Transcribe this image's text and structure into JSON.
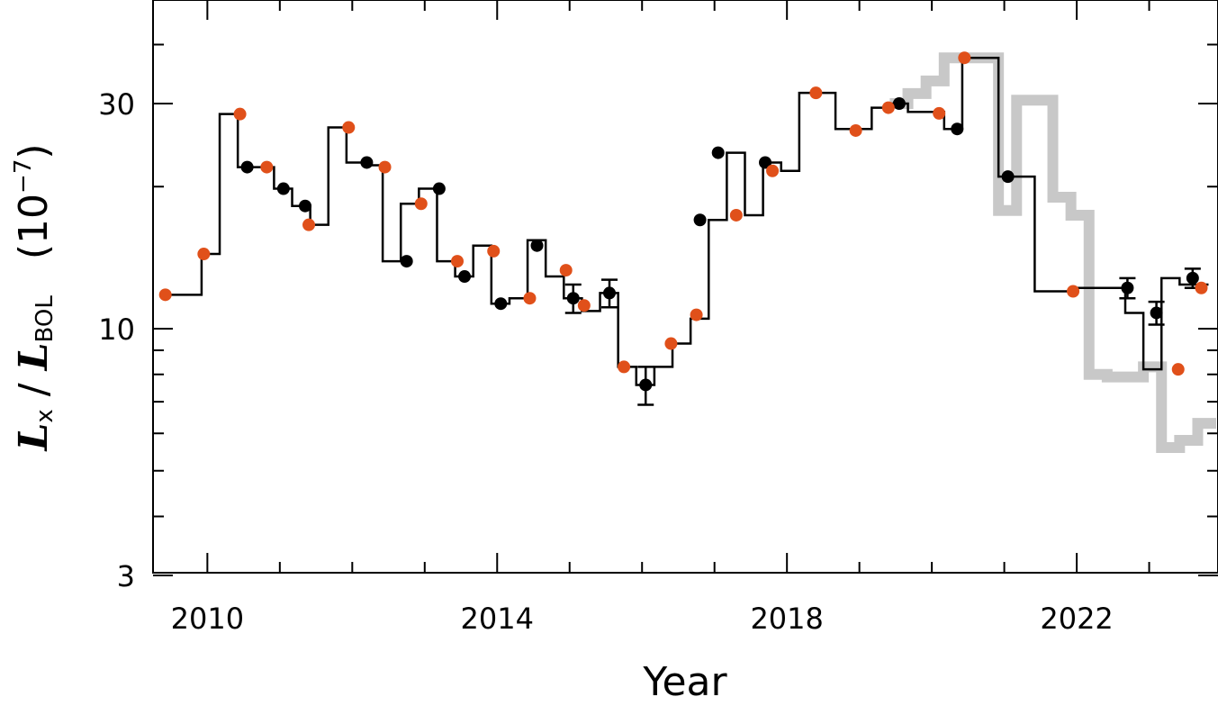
{
  "chart_data": {
    "type": "line",
    "title": "",
    "xlabel": "Year",
    "ylabel": {
      "symbol": "L",
      "numerator_sub": "x",
      "slash": "/",
      "denominator_sub": "BOL",
      "unit_open": "(",
      "unit_base": "10",
      "unit_exp": "−7",
      "unit_close": ")"
    },
    "xlim": [
      2009.25,
      2023.95
    ],
    "ylim": [
      3,
      50
    ],
    "yscale": "log",
    "x_ticks": [
      2010,
      2014,
      2018,
      2022
    ],
    "x_tick_labels": [
      "2010",
      "2014",
      "2018",
      "2022"
    ],
    "y_ticks": [
      3,
      10,
      30
    ],
    "y_tick_labels": [
      "3",
      "10",
      "30"
    ],
    "grid": false,
    "colors": {
      "black": "#000000",
      "orange": "#e0501a",
      "grey": "#c8c8c8"
    },
    "series": [
      {
        "style": "step",
        "color": "#000000",
        "x": [
          2009.42,
          2009.67,
          2009.92,
          2010.17,
          2010.42,
          2010.67,
          2010.92,
          2011.17,
          2011.42,
          2011.67,
          2011.92,
          2012.17,
          2012.42,
          2012.67,
          2012.92,
          2013.17,
          2013.42,
          2013.67,
          2013.92,
          2014.17,
          2014.42,
          2014.67,
          2014.92,
          2015.17,
          2015.42,
          2015.67,
          2015.92,
          2016.17,
          2016.42,
          2016.67,
          2016.92,
          2017.17,
          2017.42,
          2017.67,
          2017.92,
          2018.17,
          2018.42,
          2018.67,
          2018.92,
          2019.17,
          2019.42,
          2019.67,
          2019.92,
          2020.17,
          2020.42,
          2020.67,
          2020.92,
          2021.17,
          2021.42,
          2021.67,
          2021.92,
          2022.17,
          2022.42,
          2022.67,
          2022.92,
          2023.17,
          2023.42,
          2023.67
        ],
        "y": [
          11.8,
          11.8,
          14.4,
          28.5,
          22.0,
          22.0,
          19.8,
          18.2,
          16.6,
          26.7,
          22.5,
          22.2,
          13.9,
          18.4,
          19.8,
          13.9,
          12.9,
          15.0,
          11.3,
          11.6,
          15.4,
          12.9,
          11.6,
          10.9,
          11.9,
          8.3,
          7.6,
          8.3,
          9.3,
          10.5,
          17.0,
          23.6,
          17.4,
          22.5,
          21.6,
          31.6,
          31.6,
          26.5,
          26.5,
          29.4,
          30.0,
          28.8,
          28.8,
          26.5,
          37.5,
          37.5,
          21.0,
          21.0,
          12.0,
          12.0,
          12.2,
          12.2,
          12.2,
          10.8,
          8.2,
          12.8,
          12.4,
          12.4
        ]
      },
      {
        "style": "step",
        "color": "#c8c8c8",
        "x": [
          2019.42,
          2019.67,
          2019.92,
          2020.17,
          2020.42,
          2020.67,
          2020.92,
          2021.17,
          2021.42,
          2021.67,
          2021.92,
          2022.17,
          2022.42,
          2022.67,
          2022.92,
          2023.17,
          2023.42,
          2023.67
        ],
        "y": [
          30.0,
          31.5,
          33.5,
          37.5,
          37.5,
          37.5,
          17.8,
          30.5,
          30.5,
          19.0,
          17.4,
          8.0,
          7.9,
          7.9,
          8.3,
          5.6,
          5.8,
          6.3
        ]
      },
      {
        "style": "markers",
        "color": "#e0501a",
        "x": [
          2009.42,
          2009.95,
          2010.45,
          2010.82,
          2011.4,
          2011.95,
          2012.45,
          2012.95,
          2013.45,
          2013.95,
          2014.45,
          2014.95,
          2015.2,
          2015.75,
          2016.4,
          2016.75,
          2017.3,
          2017.8,
          2018.4,
          2018.95,
          2019.4,
          2020.1,
          2020.45,
          2021.95,
          2023.4,
          2023.72
        ],
        "y": [
          11.8,
          14.4,
          28.5,
          22.0,
          16.6,
          26.7,
          22.0,
          18.4,
          13.9,
          14.6,
          11.6,
          13.3,
          11.2,
          8.3,
          9.3,
          10.7,
          17.4,
          21.6,
          31.6,
          26.3,
          29.4,
          28.6,
          37.5,
          12.0,
          8.2,
          12.2
        ]
      },
      {
        "style": "markers_errorbars",
        "color": "#000000",
        "x": [
          2010.55,
          2011.05,
          2011.35,
          2012.2,
          2012.75,
          2013.2,
          2013.55,
          2014.05,
          2014.55,
          2015.05,
          2015.55,
          2016.05,
          2016.8,
          2017.05,
          2017.7,
          2019.55,
          2020.35,
          2021.05,
          2022.7,
          2023.1,
          2023.6
        ],
        "y": [
          22.0,
          19.8,
          18.2,
          22.5,
          13.9,
          19.8,
          12.9,
          11.3,
          15.0,
          11.6,
          11.9,
          7.6,
          17.0,
          23.6,
          22.5,
          30.0,
          26.5,
          21.0,
          12.2,
          10.8,
          12.8
        ],
        "yerr": [
          0,
          0,
          0,
          0,
          0,
          0,
          0,
          0,
          0,
          0.8,
          0.8,
          0.7,
          0,
          0,
          0,
          0,
          0,
          0,
          0.6,
          0.6,
          0.6
        ]
      }
    ]
  }
}
